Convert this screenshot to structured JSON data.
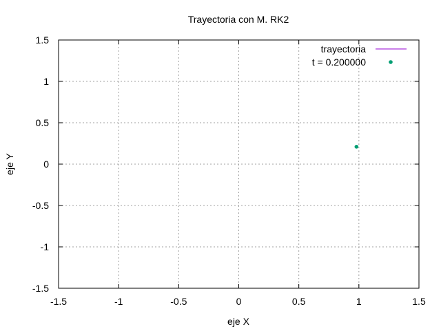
{
  "chart_data": {
    "type": "scatter",
    "title": "Trayectoria con M. RK2",
    "xlabel": "eje X",
    "ylabel": "eje Y",
    "xlim": [
      -1.5,
      1.5
    ],
    "ylim": [
      -1.5,
      1.5
    ],
    "xticks": [
      "-1.5",
      "-1",
      "-0.5",
      "0",
      "0.5",
      "1",
      "1.5"
    ],
    "yticks": [
      "1.5",
      "1",
      "0.5",
      "0",
      "-0.5",
      "-1",
      "-1.5"
    ],
    "grid": true,
    "legend_position": "top-right",
    "series": [
      {
        "name": "trayectoria",
        "kind": "line",
        "color": "#9400d3",
        "x": [],
        "y": []
      },
      {
        "name": "t = 0.200000",
        "kind": "points",
        "color": "#009e73",
        "x": [
          0.98
        ],
        "y": [
          0.21
        ]
      }
    ]
  }
}
